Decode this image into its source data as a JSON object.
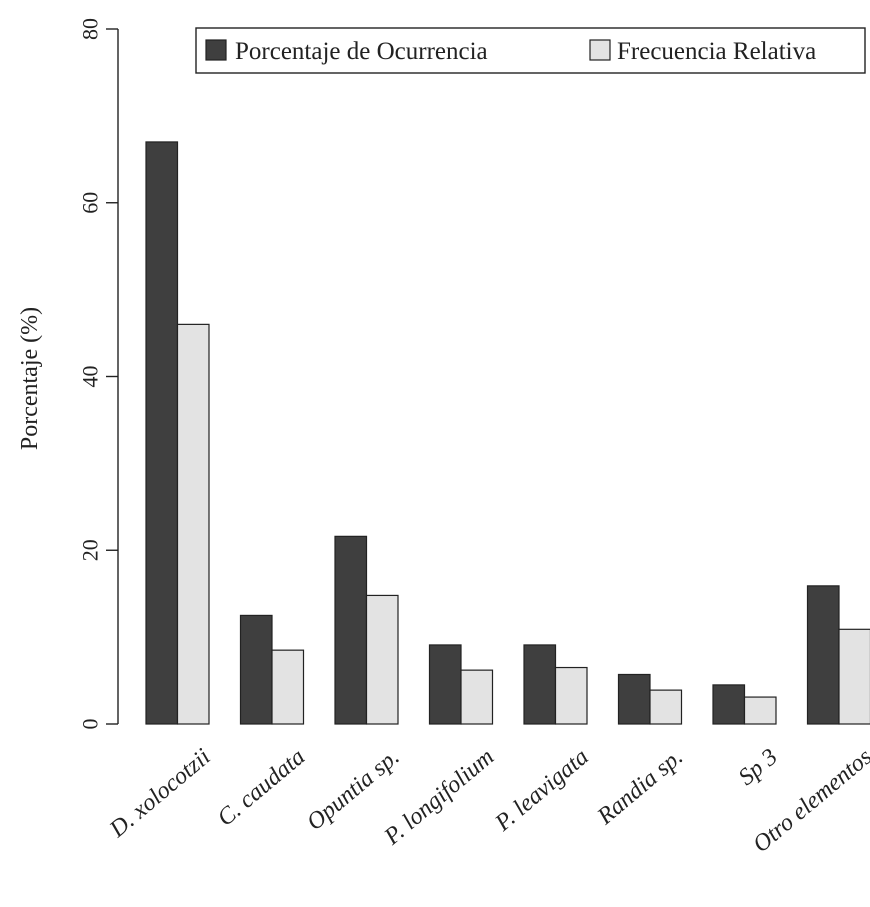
{
  "chart_data": {
    "type": "bar",
    "ylabel": "Porcentaje (%)",
    "ylim": [
      0,
      80
    ],
    "yticks": [
      "0",
      "20",
      "40",
      "60",
      "80"
    ],
    "ytick_values": [
      0,
      20,
      40,
      60,
      80
    ],
    "categories": [
      "D. xolocotzii",
      "C. caudata",
      "Opuntia sp.",
      "P. longifolium",
      "P. leavigata",
      "Randia sp.",
      "Sp 3",
      "Otro elementos"
    ],
    "series": [
      {
        "name": "Porcentaje de Ocurrencia",
        "color": "#3f3f3f",
        "values": [
          67.0,
          12.5,
          21.6,
          9.1,
          9.1,
          5.7,
          4.5,
          15.9
        ]
      },
      {
        "name": "Frecuencia Relativa",
        "color": "#e3e3e3",
        "values": [
          46.0,
          8.5,
          14.8,
          6.2,
          6.5,
          3.9,
          3.1,
          10.9
        ]
      }
    ],
    "grid": false,
    "legend_position": "top-right"
  }
}
